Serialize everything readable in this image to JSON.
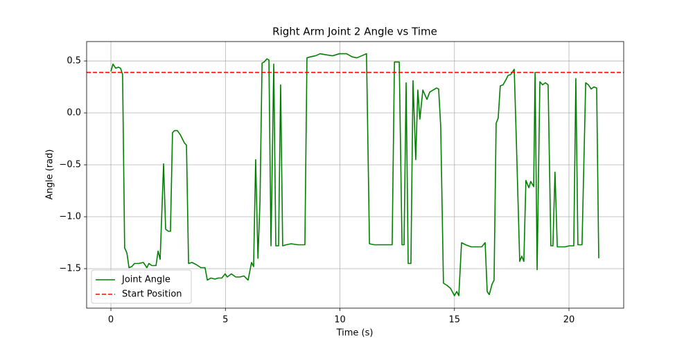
{
  "chart_data": {
    "type": "line",
    "title": "Right Arm Joint 2 Angle vs Time",
    "x_label": "Time (s)",
    "y_label": "Angle (rad)",
    "x": [
      0,
      0.09,
      0.21,
      0.33,
      0.42,
      0.51,
      0.6,
      0.7,
      0.79,
      0.91,
      1.03,
      1.21,
      1.42,
      1.57,
      1.66,
      1.79,
      1.97,
      2.06,
      2.15,
      2.3,
      2.39,
      2.51,
      2.6,
      2.69,
      2.78,
      2.9,
      3.03,
      3.12,
      3.21,
      3.3,
      3.39,
      3.54,
      3.72,
      3.93,
      4.11,
      4.21,
      4.36,
      4.54,
      4.69,
      4.84,
      4.99,
      5.08,
      5.26,
      5.45,
      5.63,
      5.81,
      5.99,
      6.14,
      6.23,
      6.32,
      6.42,
      6.51,
      6.6,
      6.69,
      6.81,
      6.9,
      6.99,
      7.11,
      7.2,
      7.32,
      7.41,
      7.5,
      7.65,
      7.87,
      8.17,
      8.47,
      8.56,
      8.71,
      8.93,
      9.14,
      9.38,
      9.68,
      9.98,
      10.29,
      10.53,
      10.74,
      10.95,
      11.16,
      11.29,
      11.5,
      11.8,
      12.1,
      12.28,
      12.38,
      12.59,
      12.71,
      12.8,
      12.89,
      12.98,
      13.1,
      13.19,
      13.31,
      13.4,
      13.49,
      13.62,
      13.8,
      13.92,
      14.07,
      14.22,
      14.31,
      14.4,
      14.52,
      14.67,
      14.83,
      15.0,
      15.1,
      15.19,
      15.31,
      15.49,
      15.73,
      16.04,
      16.19,
      16.34,
      16.43,
      16.52,
      16.64,
      16.73,
      16.82,
      16.91,
      17.0,
      17.12,
      17.25,
      17.34,
      17.46,
      17.61,
      17.7,
      17.85,
      17.94,
      18.03,
      18.12,
      18.25,
      18.33,
      18.46,
      18.52,
      18.61,
      18.73,
      18.85,
      18.97,
      19.09,
      19.21,
      19.3,
      19.39,
      19.49,
      19.67,
      19.82,
      20.03,
      20.21,
      20.3,
      20.39,
      20.57,
      20.73,
      20.85,
      20.97,
      21.09,
      21.21,
      21.3
    ],
    "series": [
      {
        "name": "Joint Angle",
        "color": "#008000",
        "values": [
          0.4,
          0.47,
          0.43,
          0.44,
          0.43,
          0.37,
          -1.3,
          -1.35,
          -1.49,
          -1.48,
          -1.45,
          -1.45,
          -1.44,
          -1.49,
          -1.45,
          -1.47,
          -1.47,
          -1.33,
          -1.41,
          -0.49,
          -1.12,
          -1.14,
          -1.14,
          -0.19,
          -0.17,
          -0.17,
          -0.21,
          -0.25,
          -0.29,
          -0.31,
          -1.45,
          -1.44,
          -1.46,
          -1.49,
          -1.49,
          -1.61,
          -1.59,
          -1.6,
          -1.59,
          -1.59,
          -1.55,
          -1.58,
          -1.55,
          -1.58,
          -1.58,
          -1.57,
          -1.61,
          -1.44,
          -1.48,
          -0.45,
          -1.4,
          -0.85,
          0.48,
          0.49,
          0.52,
          0.51,
          -1.28,
          0.47,
          -1.28,
          -1.28,
          0.27,
          -1.28,
          -1.27,
          -1.26,
          -1.27,
          -1.27,
          0.53,
          0.54,
          0.55,
          0.57,
          0.56,
          0.55,
          0.57,
          0.57,
          0.54,
          0.53,
          0.55,
          0.57,
          -1.26,
          -1.27,
          -1.27,
          -1.27,
          -1.27,
          0.49,
          0.49,
          -1.27,
          -1.27,
          0.29,
          -1.45,
          -1.45,
          0.31,
          -0.45,
          0.22,
          -0.06,
          0.22,
          0.13,
          0.2,
          0.22,
          0.24,
          0.23,
          -0.13,
          -1.64,
          -1.66,
          -1.69,
          -1.76,
          -1.72,
          -1.76,
          -1.25,
          -1.27,
          -1.29,
          -1.29,
          -1.29,
          -1.25,
          -1.72,
          -1.75,
          -1.65,
          -1.61,
          -0.1,
          -0.05,
          0.26,
          0.27,
          0.32,
          0.36,
          0.37,
          0.42,
          -0.25,
          -1.43,
          -1.38,
          -1.43,
          -0.65,
          -0.72,
          -0.66,
          -0.71,
          0.39,
          -1.51,
          0.3,
          0.27,
          0.29,
          0.27,
          -1.28,
          -1.28,
          -0.57,
          -1.29,
          -1.29,
          -1.29,
          -1.28,
          -1.28,
          0.33,
          -1.27,
          -1.27,
          0.29,
          0.27,
          0.23,
          0.25,
          0.24,
          -1.4
        ]
      },
      {
        "name": "Start Position",
        "color": "#ff0000",
        "style": "dashed",
        "value": 0.39
      }
    ],
    "xlim": [
      -1.06,
      22.39
    ],
    "xticks": [
      0,
      5,
      10,
      15,
      20
    ],
    "ylim": [
      -1.88,
      0.687
    ],
    "yticks": [
      {
        "value": -1.5,
        "label": "−1.5"
      },
      {
        "value": -1.0,
        "label": "−1.0"
      },
      {
        "value": -0.5,
        "label": "−0.5"
      },
      {
        "value": 0.0,
        "label": "0.0"
      },
      0.5
    ],
    "grid": true,
    "legend": "lower left"
  }
}
